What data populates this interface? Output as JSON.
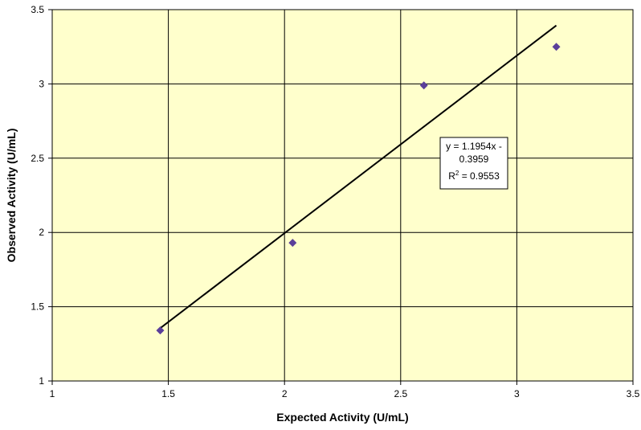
{
  "chart_data": {
    "type": "scatter",
    "xlabel": "Expected Activity (U/mL)",
    "ylabel": "Observed Activity (U/mL)",
    "xlim": [
      1,
      3.5
    ],
    "ylim": [
      1,
      3.5
    ],
    "x_ticks": [
      1,
      1.5,
      2,
      2.5,
      3,
      3.5
    ],
    "y_ticks": [
      1,
      1.5,
      2,
      2.5,
      3,
      3.5
    ],
    "x_tick_labels": [
      "1",
      "1.5",
      "2",
      "2.5",
      "3",
      "3.5"
    ],
    "y_tick_labels": [
      "1",
      "1.5",
      "2",
      "2.5",
      "3",
      "3.5"
    ],
    "grid": true,
    "points": [
      {
        "x": 1.465,
        "y": 1.34
      },
      {
        "x": 2.035,
        "y": 1.93
      },
      {
        "x": 2.6,
        "y": 2.99
      },
      {
        "x": 3.17,
        "y": 3.25
      }
    ],
    "trendline": {
      "type": "linear",
      "slope": 1.1954,
      "intercept": -0.3959,
      "x_range": [
        1.465,
        3.17
      ],
      "equation_lines": [
        "y = 1.1954x -",
        "0.3959"
      ],
      "r2_label": "R",
      "r2_sup": "2",
      "r2_value": " = 0.9553"
    },
    "colors": {
      "plot_background": "#FFFFCC",
      "marker": "#5B3F9A",
      "trendline": "#000000",
      "grid": "#000000"
    }
  }
}
